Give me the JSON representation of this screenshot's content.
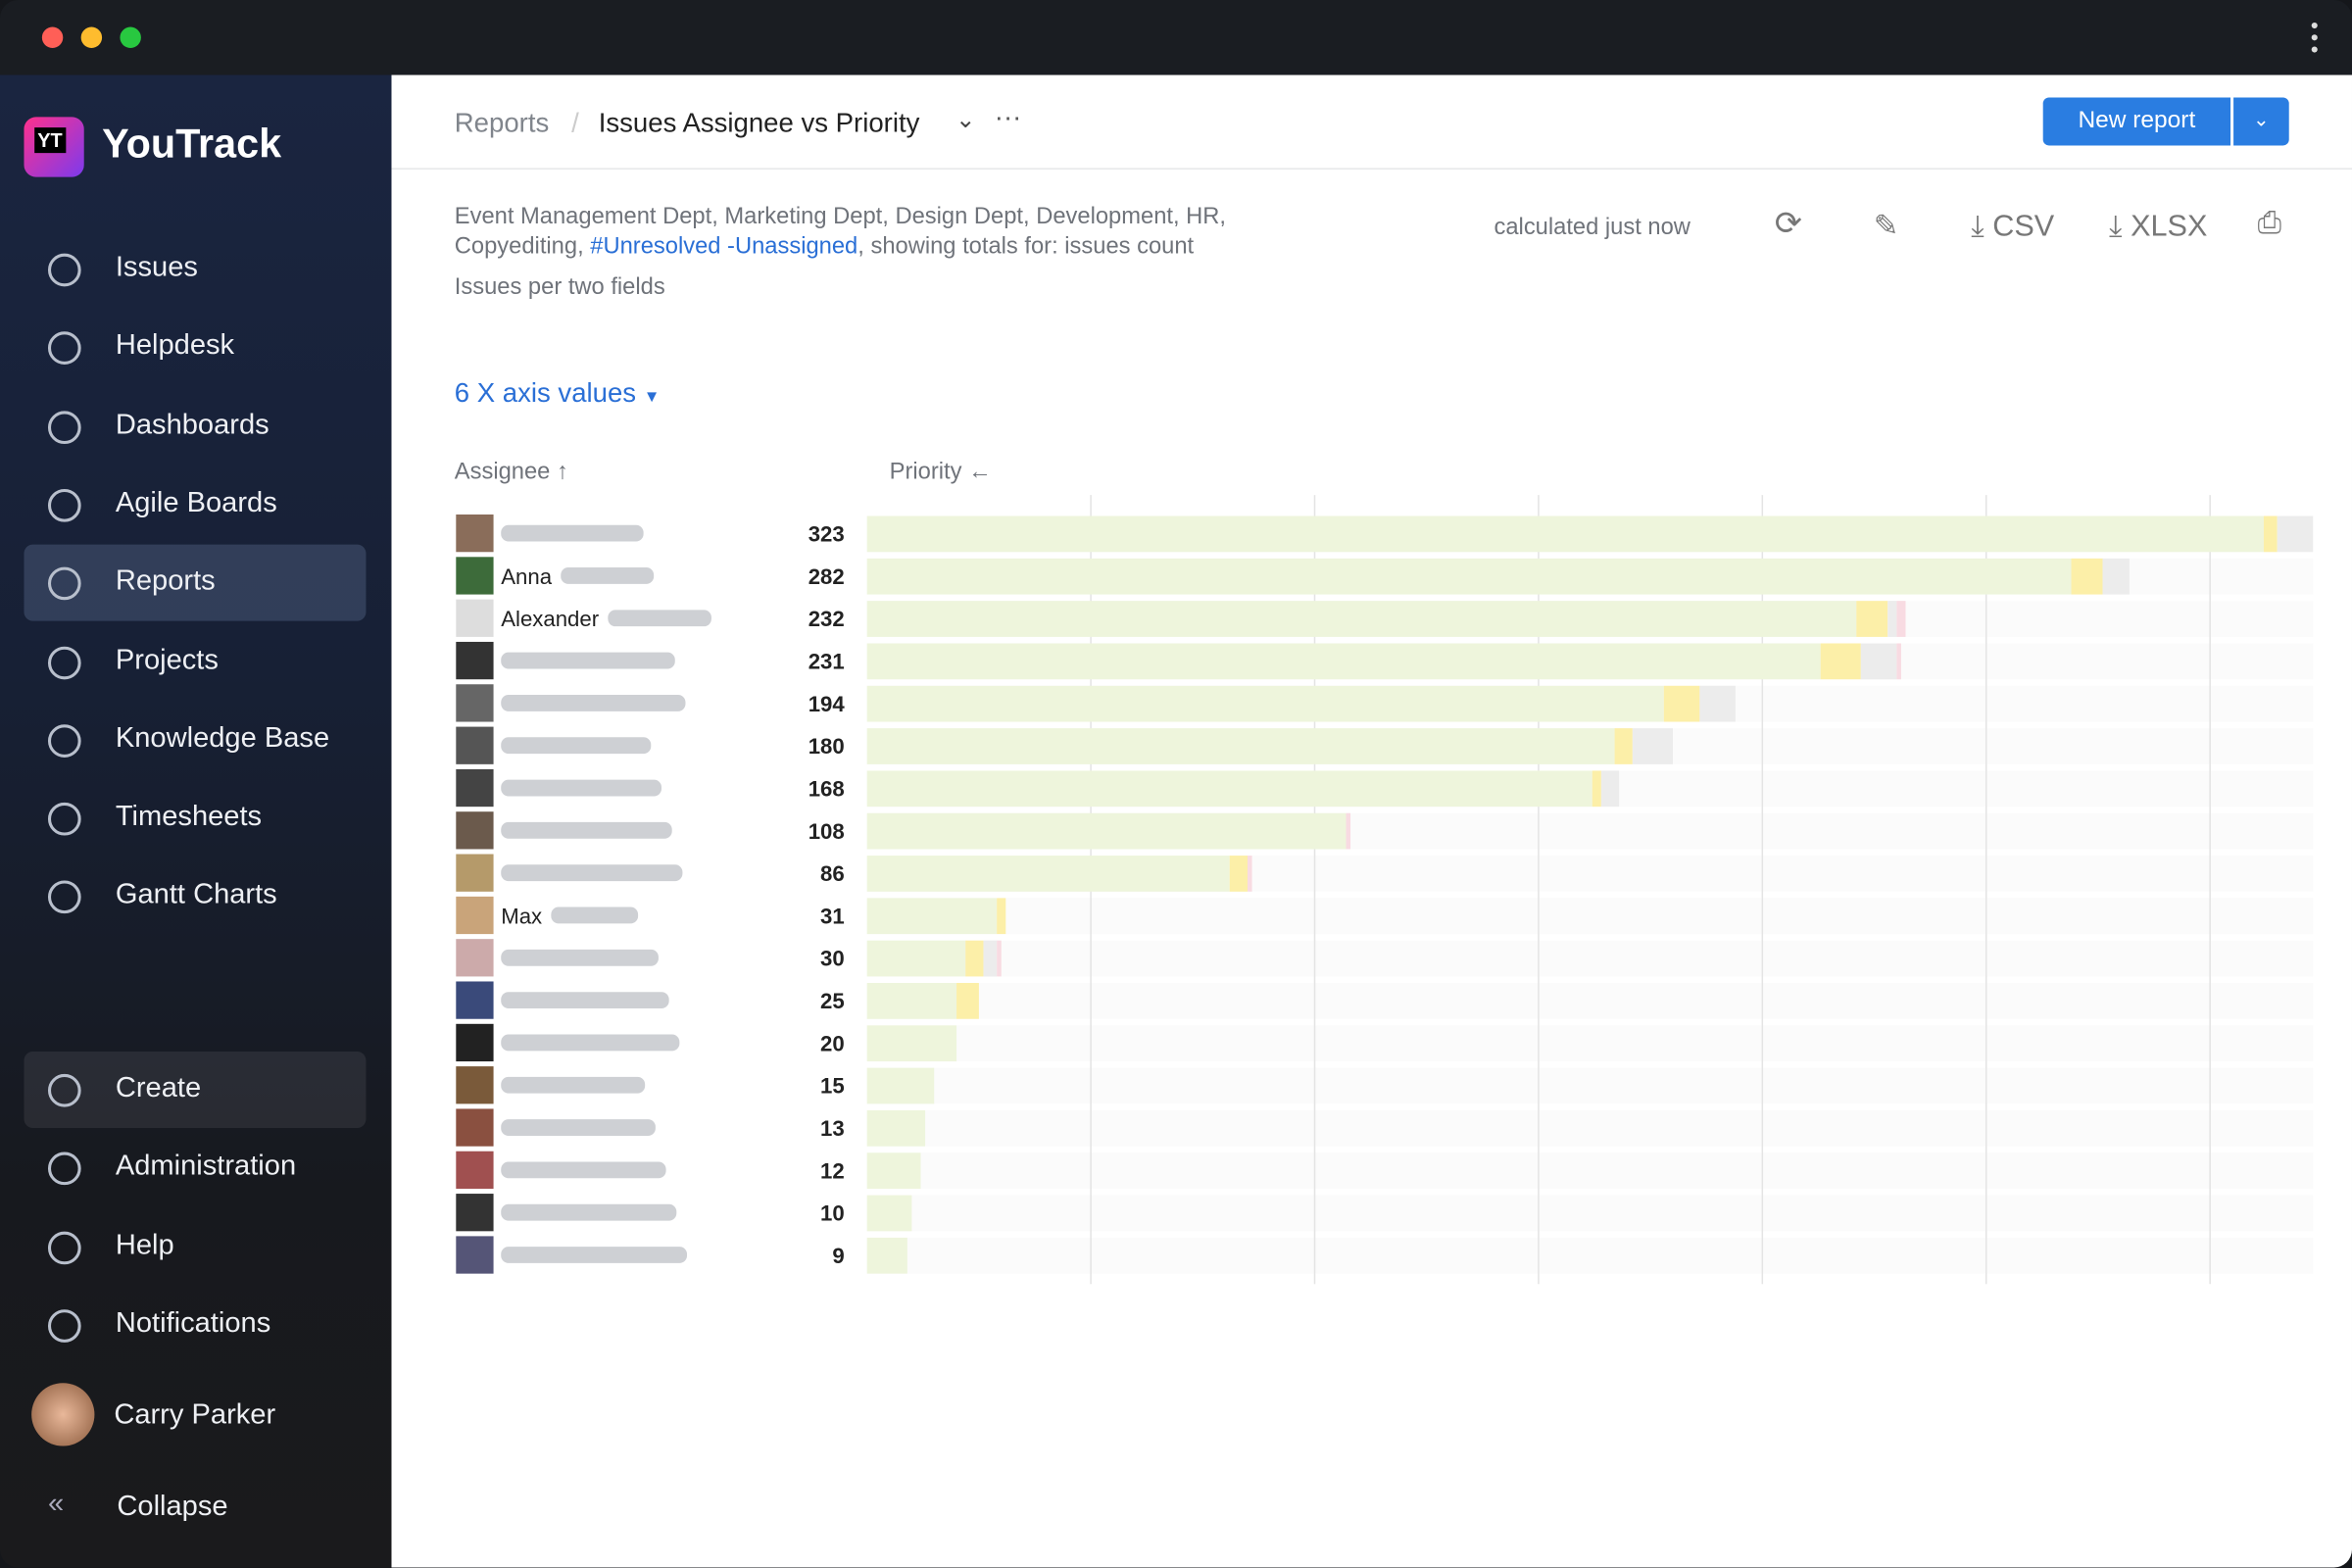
{
  "sidebar": {
    "brand": "YouTrack",
    "logo": "YT",
    "nav": [
      "Issues",
      "Helpdesk",
      "Dashboards",
      "Agile Boards",
      "Reports",
      "Projects",
      "Knowledge Base",
      "Timesheets",
      "Gantt Charts"
    ],
    "bottom": [
      "Create",
      "Administration",
      "Help",
      "Notifications"
    ],
    "user": "Carry Parker",
    "collapse": "Collapse"
  },
  "header": {
    "breadcrumb": [
      "Reports",
      "Issues Assignee vs Priority"
    ],
    "more": "···",
    "new_report": "New report"
  },
  "report": {
    "description_1": "Event Management Dept, Marketing Dept, Design Dept, Development, HR, Copyediting, ",
    "query": "#Unresolved -Unassigned",
    "description_2": ", showing totals for: issues count",
    "subtitle": "Issues per two fields",
    "status": "calculated just now",
    "export": [
      "CSV",
      "XLSX"
    ],
    "axis_values": "6 X axis values"
  },
  "chart_data": {
    "type": "stacked-bar-horizontal",
    "x_label": "Assignee ↑",
    "y_label": "Priority ←",
    "categories": [
      null,
      "Anna",
      "Alexander",
      null,
      null,
      null,
      null,
      null,
      null,
      "Max",
      null,
      null,
      null,
      null,
      null,
      null,
      null,
      null
    ],
    "totals": [
      323,
      282,
      232,
      231,
      194,
      180,
      168,
      108,
      86,
      31,
      30,
      25,
      20,
      15,
      13,
      12,
      10,
      9
    ],
    "series": [
      {
        "color": "#eef5dc",
        "values": [
          312,
          269,
          221,
          213,
          178,
          167,
          162,
          107,
          81,
          29,
          22,
          20,
          20,
          15,
          13,
          12,
          10,
          9
        ]
      },
      {
        "color": "#fcefa8",
        "values": [
          3,
          7,
          7,
          9,
          8,
          4,
          2,
          0,
          4,
          2,
          4,
          5,
          0,
          0,
          0,
          0,
          0,
          0
        ]
      },
      {
        "color": "#ececec",
        "values": [
          8,
          6,
          2,
          8,
          8,
          9,
          4,
          0,
          0,
          0,
          3,
          0,
          0,
          0,
          0,
          0,
          0,
          0
        ]
      },
      {
        "color": "#f8dbe2",
        "values": [
          0,
          0,
          2,
          1,
          0,
          0,
          0,
          1,
          1,
          0,
          1,
          0,
          0,
          0,
          0,
          0,
          0,
          0
        ]
      }
    ],
    "xlim": [
      0,
      323
    ],
    "xticks": [
      50,
      100,
      150,
      200,
      250,
      300
    ],
    "grid": true
  }
}
